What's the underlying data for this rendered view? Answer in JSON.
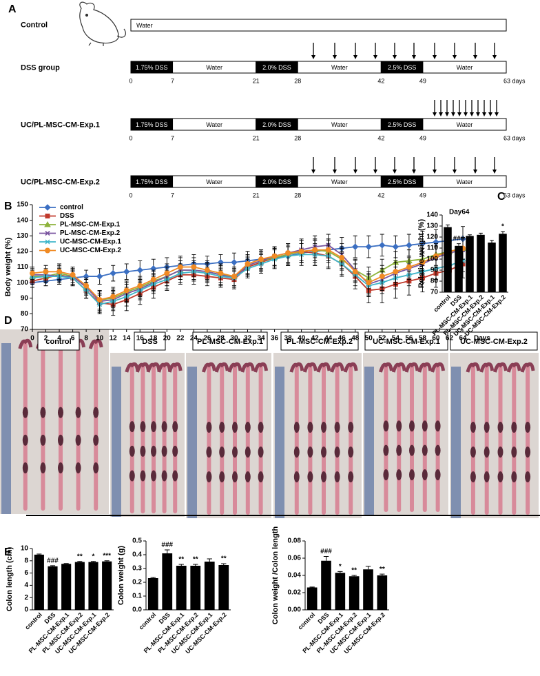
{
  "panels": [
    "A",
    "B",
    "C",
    "D",
    "E"
  ],
  "timeline": {
    "xlim": [
      0,
      63
    ],
    "groups": [
      {
        "name": "Control",
        "segments": [
          {
            "label": "Water",
            "color": "#ffffff"
          }
        ]
      },
      {
        "name": "DSS group",
        "segments": [
          {
            "label": "1.75% DSS",
            "start": 0,
            "end": 7,
            "color": "#000000"
          },
          {
            "label": "Water",
            "start": 7,
            "end": 21,
            "color": "#ffffff"
          },
          {
            "label": "2.0% DSS",
            "start": 21,
            "end": 28,
            "color": "#000000"
          },
          {
            "label": "Water",
            "start": 28,
            "end": 42,
            "color": "#ffffff"
          },
          {
            "label": "2.5% DSS",
            "start": 42,
            "end": 49,
            "color": "#000000"
          },
          {
            "label": "Water",
            "start": 49,
            "end": 63,
            "color": "#ffffff"
          }
        ],
        "ticks": [
          0,
          7,
          21,
          28,
          42,
          49,
          {
            "value": 63,
            "label": "63 days"
          }
        ]
      },
      {
        "name": "UC/PL-MSC-CM-Exp.1",
        "segments": [
          {
            "label": "1.75% DSS",
            "start": 0,
            "end": 7,
            "color": "#000000"
          },
          {
            "label": "Water",
            "start": 7,
            "end": 21,
            "color": "#ffffff"
          },
          {
            "label": "2.0% DSS",
            "start": 21,
            "end": 28,
            "color": "#000000"
          },
          {
            "label": "Water",
            "start": 28,
            "end": 42,
            "color": "#ffffff"
          },
          {
            "label": "2.5% DSS",
            "start": 42,
            "end": 49,
            "color": "#000000"
          },
          {
            "label": "Water",
            "start": 49,
            "end": 63,
            "color": "#ffffff"
          }
        ],
        "ticks": [
          0,
          7,
          21,
          28,
          42,
          49,
          {
            "value": 63,
            "label": "63 days"
          }
        ]
      },
      {
        "name": "UC/PL-MSC-CM-Exp.2",
        "segments": [
          {
            "label": "1.75% DSS",
            "start": 0,
            "end": 7,
            "color": "#000000"
          },
          {
            "label": "Water",
            "start": 7,
            "end": 21,
            "color": "#ffffff"
          },
          {
            "label": "2.0% DSS",
            "start": 21,
            "end": 28,
            "color": "#000000"
          },
          {
            "label": "Water",
            "start": 28,
            "end": 42,
            "color": "#ffffff"
          },
          {
            "label": "2.5% DSS",
            "start": 42,
            "end": 49,
            "color": "#000000"
          },
          {
            "label": "Water",
            "start": 49,
            "end": 63,
            "color": "#ffffff"
          }
        ],
        "ticks": [
          0,
          7,
          21,
          28,
          42,
          49,
          {
            "value": 63,
            "label": "63 days"
          }
        ]
      }
    ]
  },
  "photos": {
    "labels": [
      "control",
      "DSS",
      "PL-MSC-CM-Exp.1",
      "PL-MSC-CM-Exp.2",
      "UC-MSC-CM-Exp.1",
      "UC-MSC-CM-Exp.2"
    ]
  },
  "chart_data": [
    {
      "type": "line",
      "xlabel": "Days",
      "ylabel": "Body weight (%)",
      "x": [
        0,
        2,
        4,
        6,
        8,
        10,
        12,
        14,
        16,
        18,
        20,
        22,
        24,
        26,
        28,
        30,
        32,
        34,
        36,
        38,
        40,
        42,
        44,
        46,
        48,
        50,
        52,
        54,
        56,
        58,
        60,
        62,
        64
      ],
      "xlim": [
        0,
        64
      ],
      "xticks": [
        0,
        2,
        4,
        6,
        8,
        10,
        12,
        14,
        16,
        18,
        20,
        22,
        24,
        26,
        28,
        30,
        32,
        34,
        36,
        38,
        40,
        42,
        44,
        46,
        48,
        50,
        52,
        54,
        56,
        58,
        60,
        62,
        64
      ],
      "ylim": [
        70,
        150
      ],
      "yticks": [
        70,
        80,
        90,
        100,
        110,
        120,
        130,
        140,
        150
      ],
      "legend": "top-left",
      "series": [
        {
          "name": "control",
          "color": "#3b6fc2",
          "marker": "diamond",
          "values": [
            100,
            101,
            102,
            103,
            104,
            104,
            106,
            107,
            108,
            109,
            110,
            111,
            112,
            112,
            113,
            113,
            114,
            115,
            116,
            117,
            119,
            120,
            121,
            122,
            123,
            123,
            124,
            123,
            124,
            125,
            126,
            127,
            128
          ],
          "errors": [
            3,
            3,
            3,
            4,
            4,
            5,
            5,
            5,
            6,
            6,
            6,
            6,
            6,
            5,
            5,
            6,
            6,
            6,
            6,
            6,
            6,
            7,
            7,
            7,
            7,
            7,
            7,
            7,
            7,
            8,
            8,
            8,
            8
          ]
        },
        {
          "name": "DSS",
          "color": "#c0392b",
          "marker": "square",
          "values": [
            101,
            103,
            105,
            103,
            95,
            87,
            86,
            89,
            93,
            97,
            101,
            105,
            105,
            104,
            103,
            102,
            110,
            113,
            116,
            118,
            120,
            119,
            117,
            112,
            104,
            95,
            96,
            99,
            101,
            103,
            106,
            108,
            112
          ],
          "errors": [
            4,
            5,
            5,
            5,
            5,
            6,
            7,
            7,
            7,
            7,
            6,
            6,
            6,
            6,
            6,
            6,
            6,
            6,
            6,
            7,
            7,
            8,
            8,
            8,
            8,
            8,
            9,
            9,
            9,
            9,
            9,
            9,
            9
          ]
        },
        {
          "name": "PL-MSC-CM-Exp.1",
          "color": "#8db33b",
          "marker": "triangle",
          "values": [
            104,
            104,
            106,
            104,
            97,
            89,
            90,
            94,
            97,
            101,
            104,
            108,
            108,
            107,
            105,
            104,
            111,
            114,
            116,
            118,
            120,
            121,
            120,
            115,
            108,
            103,
            108,
            113,
            114,
            115,
            118,
            120,
            122
          ],
          "errors": [
            4,
            4,
            5,
            5,
            5,
            6,
            6,
            6,
            6,
            6,
            6,
            6,
            6,
            6,
            6,
            6,
            6,
            6,
            6,
            6,
            7,
            7,
            7,
            7,
            7,
            7,
            7,
            7,
            7,
            7,
            7,
            7,
            7
          ]
        },
        {
          "name": "PL-MSC-CM-Exp.2",
          "color": "#7a55a0",
          "marker": "x",
          "values": [
            105,
            105,
            104,
            104,
            97,
            88,
            89,
            93,
            96,
            100,
            104,
            108,
            108,
            107,
            105,
            103,
            111,
            114,
            117,
            119,
            121,
            123,
            124,
            118,
            108,
            99,
            102,
            106,
            109,
            112,
            116,
            119,
            121
          ],
          "errors": [
            4,
            4,
            5,
            5,
            5,
            6,
            6,
            6,
            6,
            6,
            6,
            6,
            6,
            6,
            6,
            6,
            6,
            6,
            6,
            6,
            7,
            7,
            7,
            7,
            7,
            7,
            7,
            7,
            7,
            7,
            7,
            7,
            7
          ]
        },
        {
          "name": "UC-MSC-CM-Exp.1",
          "color": "#3fb5c9",
          "marker": "star",
          "values": [
            103,
            104,
            104,
            103,
            95,
            86,
            88,
            91,
            95,
            99,
            102,
            106,
            107,
            106,
            104,
            103,
            109,
            112,
            115,
            117,
            118,
            118,
            117,
            112,
            105,
            98,
            100,
            103,
            105,
            107,
            109,
            111,
            114
          ],
          "errors": [
            4,
            4,
            5,
            5,
            5,
            6,
            6,
            6,
            6,
            6,
            6,
            6,
            6,
            6,
            6,
            6,
            6,
            6,
            6,
            6,
            7,
            7,
            7,
            7,
            7,
            7,
            7,
            7,
            7,
            7,
            7,
            7,
            7
          ]
        },
        {
          "name": "UC-MSC-CM-Exp.2",
          "color": "#f08a24",
          "marker": "circle",
          "values": [
            106,
            107,
            107,
            105,
            98,
            89,
            91,
            95,
            98,
            102,
            106,
            110,
            110,
            108,
            106,
            104,
            112,
            115,
            117,
            119,
            120,
            121,
            121,
            116,
            107,
            100,
            104,
            107,
            110,
            113,
            117,
            120,
            122
          ],
          "errors": [
            4,
            4,
            5,
            5,
            5,
            6,
            6,
            6,
            6,
            6,
            6,
            6,
            6,
            6,
            6,
            6,
            6,
            6,
            6,
            6,
            7,
            7,
            7,
            7,
            7,
            7,
            7,
            7,
            7,
            7,
            7,
            7,
            7
          ]
        }
      ]
    },
    {
      "type": "bar",
      "title": "Day64",
      "ylabel": "Relative weight (%)",
      "categories": [
        "control",
        "DSS",
        "PL-MSC-CM-Exp.1",
        "PL-MSC-CM-Exp.2",
        "UC-MSC-CM-Exp.1",
        "UC-MSC-CM-Exp.2"
      ],
      "values": [
        129,
        112,
        121,
        122,
        115,
        123
      ],
      "errors": [
        2,
        2,
        1,
        1.5,
        2,
        2
      ],
      "annotations": [
        null,
        "###",
        null,
        null,
        null,
        "*"
      ],
      "color": "#000000",
      "ylim": [
        70,
        140
      ],
      "yticks": [
        70,
        80,
        90,
        100,
        110,
        120,
        130,
        140
      ]
    },
    {
      "type": "bar",
      "ylabel": "Colon length (cm)",
      "categories": [
        "control",
        "DSS",
        "PL-MSC-CM-Exp.1",
        "PL-MSC-CM-Exp.2",
        "UC-MSC-CM-Exp.1",
        "UC-MSC-CM-Exp.2"
      ],
      "values": [
        9.0,
        7.1,
        7.5,
        7.8,
        7.8,
        7.9
      ],
      "errors": [
        0.1,
        0.1,
        0.05,
        0.1,
        0.1,
        0.1
      ],
      "annotations": [
        null,
        "###",
        null,
        "**",
        "*",
        "***"
      ],
      "color": "#000000",
      "ylim": [
        0,
        10
      ],
      "yticks": [
        0,
        2,
        4,
        6,
        8,
        10
      ]
    },
    {
      "type": "bar",
      "ylabel": "Colon weight (g)",
      "categories": [
        "control",
        "DSS",
        "PL-MSC-CM-Exp.1",
        "PL-MSC-CM-Exp.2",
        "UC-MSC-CM-Exp.1",
        "UC-MSC-CM-Exp.2"
      ],
      "values": [
        0.23,
        0.41,
        0.32,
        0.32,
        0.35,
        0.325
      ],
      "errors": [
        0.005,
        0.025,
        0.01,
        0.01,
        0.02,
        0.01
      ],
      "annotations": [
        null,
        "###",
        "**",
        "**",
        null,
        "**"
      ],
      "color": "#000000",
      "ylim": [
        0,
        0.5
      ],
      "yticks": [
        {
          "value": 0,
          "label": "0.0"
        },
        0.1,
        0.2,
        0.3,
        0.4,
        0.5
      ]
    },
    {
      "type": "bar",
      "ylabel": "Colon weight /Colon length",
      "categories": [
        "control",
        "DSS",
        "PL-MSC-CM-Exp.1",
        "PL-MSC-CM-Exp.2",
        "UC-MSC-CM-Exp.1",
        "UC-MSC-CM-Exp.2"
      ],
      "values": [
        0.026,
        0.057,
        0.043,
        0.039,
        0.047,
        0.04
      ],
      "errors": [
        0.0005,
        0.005,
        0.0015,
        0.001,
        0.0035,
        0.0015
      ],
      "annotations": [
        null,
        "###",
        "*",
        "**",
        null,
        "**"
      ],
      "color": "#000000",
      "ylim": [
        0,
        0.08
      ],
      "yticks": [
        {
          "value": 0,
          "label": "0.00"
        },
        0.02,
        0.04,
        0.06,
        0.08
      ]
    }
  ]
}
